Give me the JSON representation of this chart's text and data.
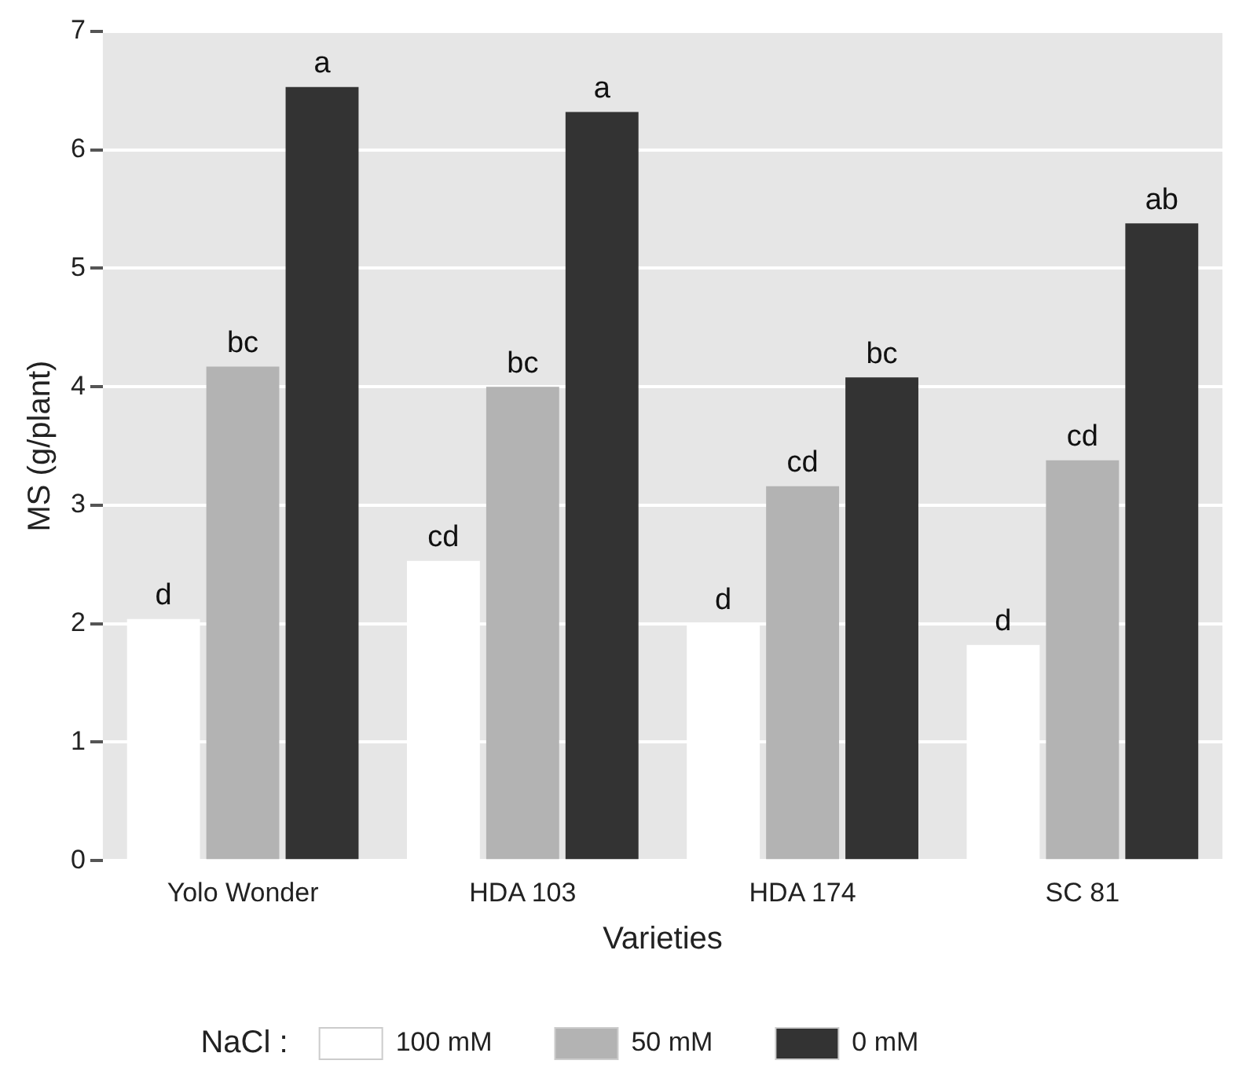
{
  "chart_data": {
    "type": "bar",
    "xlabel": "Varieties",
    "ylabel": "MS (g/plant)",
    "legend_title": "NaCl :",
    "categories": [
      "Yolo Wonder",
      "HDA 103",
      "HDA 174",
      "SC 81"
    ],
    "series": [
      {
        "name": "100 mM",
        "color": "#ffffff",
        "values": [
          2.04,
          2.53,
          2.0,
          1.82
        ],
        "value_labels": [
          "d",
          "cd",
          "d",
          "d"
        ]
      },
      {
        "name": "50 mM",
        "color": "#b3b3b3",
        "values": [
          4.17,
          4.0,
          3.16,
          3.38
        ],
        "value_labels": [
          "bc",
          "bc",
          "cd",
          "cd"
        ]
      },
      {
        "name": "0 mM",
        "color": "#333333",
        "values": [
          6.53,
          6.32,
          4.08,
          5.38
        ],
        "value_labels": [
          "a",
          "a",
          "bc",
          "ab"
        ]
      }
    ],
    "ylim": [
      0,
      7
    ],
    "yticks": [
      0,
      1,
      2,
      3,
      4,
      5,
      6,
      7
    ],
    "grid": "y",
    "legend": "bottom"
  }
}
